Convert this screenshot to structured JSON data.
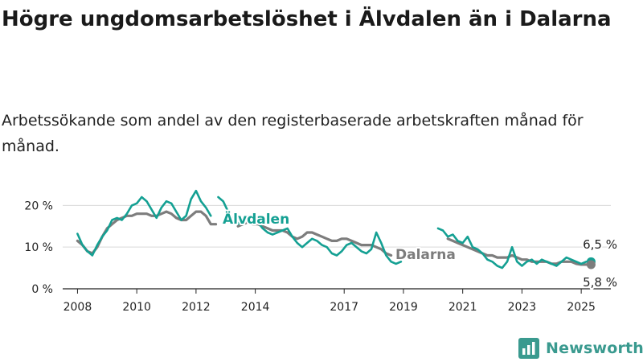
{
  "title": "Högre ungdomsarbetslöshet i Älvdalen än i Dalarna",
  "subtitle": "Arbetssökande som andel av den registerbaserade arbetskraften månad för månad.",
  "brand": "Newsworthy",
  "colors": {
    "alvdalen": "#14a093",
    "dalarna": "#7d7d7d",
    "grid": "#d9d9d9",
    "axis": "#222222"
  },
  "chart_data": {
    "type": "line",
    "ylim": [
      0,
      22
    ],
    "y_ticks": [
      0,
      10,
      20
    ],
    "y_tick_labels": [
      "0 %",
      "10 %",
      "20 %"
    ],
    "x_ticks": [
      "2008",
      "2010",
      "2012",
      "2014",
      "2017",
      "2019",
      "2021",
      "2023",
      "2025"
    ],
    "grid": "horizontal",
    "series": [
      {
        "name": "Älvdalen",
        "color": "#14a093",
        "segments": [
          [
            [
              "2008-01",
              13.2
            ],
            [
              "2008-03",
              10.5
            ],
            [
              "2008-05",
              9.0
            ],
            [
              "2008-07",
              8.0
            ],
            [
              "2008-09",
              10.5
            ],
            [
              "2008-11",
              12.5
            ],
            [
              "2009-01",
              14.0
            ],
            [
              "2009-03",
              16.5
            ],
            [
              "2009-05",
              17.0
            ],
            [
              "2009-07",
              16.5
            ],
            [
              "2009-09",
              18.0
            ],
            [
              "2009-11",
              20.0
            ],
            [
              "2010-01",
              20.5
            ],
            [
              "2010-03",
              22.0
            ],
            [
              "2010-05",
              21.0
            ],
            [
              "2010-07",
              19.0
            ],
            [
              "2010-09",
              17.0
            ],
            [
              "2010-11",
              19.5
            ],
            [
              "2011-01",
              21.0
            ],
            [
              "2011-03",
              20.5
            ],
            [
              "2011-05",
              18.5
            ],
            [
              "2011-07",
              16.5
            ],
            [
              "2011-09",
              17.5
            ],
            [
              "2011-11",
              21.5
            ],
            [
              "2012-01",
              23.5
            ],
            [
              "2012-03",
              21.0
            ],
            [
              "2012-05",
              19.5
            ],
            [
              "2012-07",
              17.5
            ]
          ],
          [
            [
              "2012-10",
              22.0
            ],
            [
              "2012-12",
              21.0
            ],
            [
              "2013-02",
              18.5
            ],
            [
              "2013-04",
              16.5
            ],
            [
              "2013-06",
              15.5
            ],
            [
              "2013-08",
              17.0
            ],
            [
              "2013-10",
              17.5
            ],
            [
              "2013-12",
              16.5
            ],
            [
              "2014-02",
              16.0
            ],
            [
              "2014-04",
              14.5
            ],
            [
              "2014-06",
              13.5
            ],
            [
              "2014-08",
              13.0
            ],
            [
              "2014-10",
              13.5
            ],
            [
              "2014-12",
              14.0
            ],
            [
              "2015-02",
              14.5
            ],
            [
              "2015-04",
              12.5
            ],
            [
              "2015-06",
              11.0
            ],
            [
              "2015-08",
              10.0
            ],
            [
              "2015-10",
              11.0
            ],
            [
              "2015-12",
              12.0
            ],
            [
              "2016-02",
              11.5
            ],
            [
              "2016-04",
              10.5
            ],
            [
              "2016-06",
              10.0
            ],
            [
              "2016-08",
              8.5
            ],
            [
              "2016-10",
              8.0
            ],
            [
              "2016-12",
              9.0
            ],
            [
              "2017-02",
              10.5
            ],
            [
              "2017-04",
              11.0
            ],
            [
              "2017-06",
              10.0
            ],
            [
              "2017-08",
              9.0
            ],
            [
              "2017-10",
              8.5
            ],
            [
              "2017-12",
              9.5
            ],
            [
              "2018-02",
              13.5
            ],
            [
              "2018-04",
              11.0
            ],
            [
              "2018-06",
              8.0
            ],
            [
              "2018-08",
              6.5
            ],
            [
              "2018-10",
              6.0
            ],
            [
              "2018-12",
              6.5
            ]
          ],
          [
            [
              "2020-03",
              14.5
            ],
            [
              "2020-05",
              14.0
            ],
            [
              "2020-07",
              12.5
            ],
            [
              "2020-09",
              13.0
            ],
            [
              "2020-11",
              11.5
            ],
            [
              "2021-01",
              11.0
            ],
            [
              "2021-03",
              12.5
            ],
            [
              "2021-05",
              10.0
            ],
            [
              "2021-07",
              9.5
            ],
            [
              "2021-09",
              8.5
            ],
            [
              "2021-11",
              7.0
            ],
            [
              "2022-01",
              6.5
            ],
            [
              "2022-03",
              5.5
            ],
            [
              "2022-05",
              5.0
            ],
            [
              "2022-07",
              6.5
            ],
            [
              "2022-09",
              10.0
            ],
            [
              "2022-11",
              6.5
            ],
            [
              "2023-01",
              5.5
            ],
            [
              "2023-03",
              6.5
            ],
            [
              "2023-05",
              7.0
            ],
            [
              "2023-07",
              6.0
            ],
            [
              "2023-09",
              7.0
            ],
            [
              "2023-11",
              6.5
            ],
            [
              "2024-01",
              6.0
            ],
            [
              "2024-03",
              5.5
            ],
            [
              "2024-05",
              6.5
            ],
            [
              "2024-07",
              7.5
            ],
            [
              "2024-09",
              7.0
            ],
            [
              "2024-11",
              6.5
            ],
            [
              "2025-01",
              6.0
            ],
            [
              "2025-03",
              6.5
            ],
            [
              "2025-05",
              6.5
            ]
          ]
        ],
        "label": "Älvdalen",
        "end_value": 6.5,
        "end_label": "6,5 %"
      },
      {
        "name": "Dalarna",
        "color": "#7d7d7d",
        "segments": [
          [
            [
              "2008-01",
              11.5
            ],
            [
              "2008-03",
              10.5
            ],
            [
              "2008-05",
              9.0
            ],
            [
              "2008-07",
              8.5
            ],
            [
              "2008-09",
              10.0
            ],
            [
              "2008-11",
              12.5
            ],
            [
              "2009-01",
              14.5
            ],
            [
              "2009-03",
              15.5
            ],
            [
              "2009-05",
              16.5
            ],
            [
              "2009-07",
              17.0
            ],
            [
              "2009-09",
              17.5
            ],
            [
              "2009-11",
              17.5
            ],
            [
              "2010-01",
              18.0
            ],
            [
              "2010-03",
              18.0
            ],
            [
              "2010-05",
              18.0
            ],
            [
              "2010-07",
              17.5
            ],
            [
              "2010-09",
              17.5
            ],
            [
              "2010-11",
              18.0
            ],
            [
              "2011-01",
              18.5
            ],
            [
              "2011-03",
              18.0
            ],
            [
              "2011-05",
              17.0
            ],
            [
              "2011-07",
              16.5
            ],
            [
              "2011-09",
              16.5
            ],
            [
              "2011-11",
              17.5
            ],
            [
              "2012-01",
              18.5
            ],
            [
              "2012-03",
              18.5
            ],
            [
              "2012-05",
              17.5
            ],
            [
              "2012-07",
              15.5
            ],
            [
              "2012-09",
              15.5
            ]
          ],
          [
            [
              "2013-06",
              15.0
            ],
            [
              "2013-08",
              15.5
            ],
            [
              "2013-10",
              16.0
            ],
            [
              "2013-12",
              15.5
            ],
            [
              "2014-02",
              15.5
            ],
            [
              "2014-04",
              15.0
            ],
            [
              "2014-06",
              14.5
            ],
            [
              "2014-08",
              14.0
            ],
            [
              "2014-10",
              14.0
            ],
            [
              "2014-12",
              14.0
            ],
            [
              "2015-02",
              13.5
            ],
            [
              "2015-04",
              12.5
            ],
            [
              "2015-06",
              12.0
            ],
            [
              "2015-08",
              12.5
            ],
            [
              "2015-10",
              13.5
            ],
            [
              "2015-12",
              13.5
            ],
            [
              "2016-02",
              13.0
            ],
            [
              "2016-04",
              12.5
            ],
            [
              "2016-06",
              12.0
            ],
            [
              "2016-08",
              11.5
            ],
            [
              "2016-10",
              11.5
            ],
            [
              "2016-12",
              12.0
            ],
            [
              "2017-02",
              12.0
            ],
            [
              "2017-04",
              11.5
            ],
            [
              "2017-06",
              11.0
            ],
            [
              "2017-08",
              10.5
            ],
            [
              "2017-10",
              10.5
            ],
            [
              "2017-12",
              10.5
            ],
            [
              "2018-02",
              10.0
            ],
            [
              "2018-04",
              9.5
            ],
            [
              "2018-06",
              8.5
            ],
            [
              "2018-08",
              8.0
            ]
          ],
          [
            [
              "2020-07",
              12.0
            ],
            [
              "2020-09",
              11.5
            ],
            [
              "2020-11",
              11.0
            ],
            [
              "2021-01",
              10.5
            ],
            [
              "2021-03",
              10.0
            ],
            [
              "2021-05",
              9.5
            ],
            [
              "2021-07",
              9.0
            ],
            [
              "2021-09",
              8.5
            ],
            [
              "2021-11",
              8.0
            ],
            [
              "2022-01",
              8.0
            ],
            [
              "2022-03",
              7.5
            ],
            [
              "2022-05",
              7.5
            ],
            [
              "2022-07",
              7.5
            ],
            [
              "2022-09",
              8.0
            ],
            [
              "2022-11",
              7.5
            ],
            [
              "2023-01",
              7.0
            ],
            [
              "2023-03",
              7.0
            ],
            [
              "2023-05",
              6.5
            ],
            [
              "2023-07",
              6.5
            ],
            [
              "2023-09",
              6.5
            ],
            [
              "2023-11",
              6.5
            ],
            [
              "2024-01",
              6.0
            ],
            [
              "2024-03",
              6.0
            ],
            [
              "2024-05",
              6.5
            ],
            [
              "2024-07",
              6.5
            ],
            [
              "2024-09",
              6.5
            ],
            [
              "2024-11",
              6.0
            ],
            [
              "2025-01",
              5.8
            ],
            [
              "2025-03",
              5.8
            ],
            [
              "2025-05",
              5.8
            ]
          ]
        ],
        "label": "Dalarna",
        "end_value": 5.8,
        "end_label": "5,8 %"
      }
    ]
  }
}
